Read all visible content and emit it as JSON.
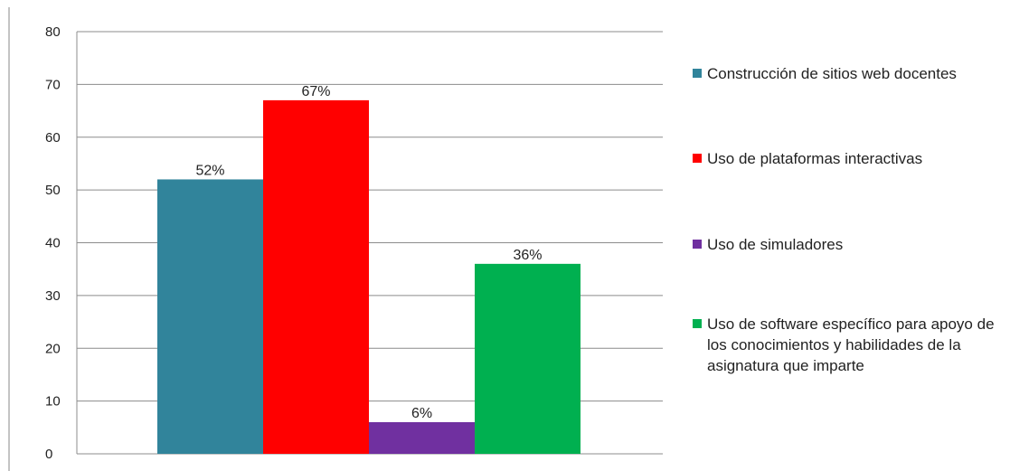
{
  "chart_data": {
    "type": "bar",
    "categories": [
      "Construcción de sitios web docentes",
      "Uso de plataformas interactivas",
      "Uso de simuladores",
      "Uso de software específico para apoyo de los conocimientos y habilidades de la asignatura que imparte"
    ],
    "values": [
      52,
      67,
      6,
      36
    ],
    "data_labels": [
      "52%",
      "67%",
      "6%",
      "36%"
    ],
    "colors": [
      "#31849b",
      "#ff0000",
      "#7030a0",
      "#00b050"
    ],
    "ylim": [
      0,
      80
    ],
    "yticks": [
      "0",
      "10",
      "20",
      "30",
      "40",
      "50",
      "60",
      "70",
      "80"
    ],
    "grid": true,
    "legend_position": "right",
    "title": "",
    "xlabel": "",
    "ylabel": ""
  },
  "legend": {
    "items": [
      {
        "label": "Construcción de sitios web docentes",
        "color": "#31849b"
      },
      {
        "label": "Uso de plataformas interactivas",
        "color": "#ff0000"
      },
      {
        "label": "Uso de simuladores",
        "color": "#7030a0"
      },
      {
        "label": "Uso de software específico para apoyo de los conocimientos y habilidades de la asignatura que imparte",
        "color": "#00b050"
      }
    ]
  }
}
